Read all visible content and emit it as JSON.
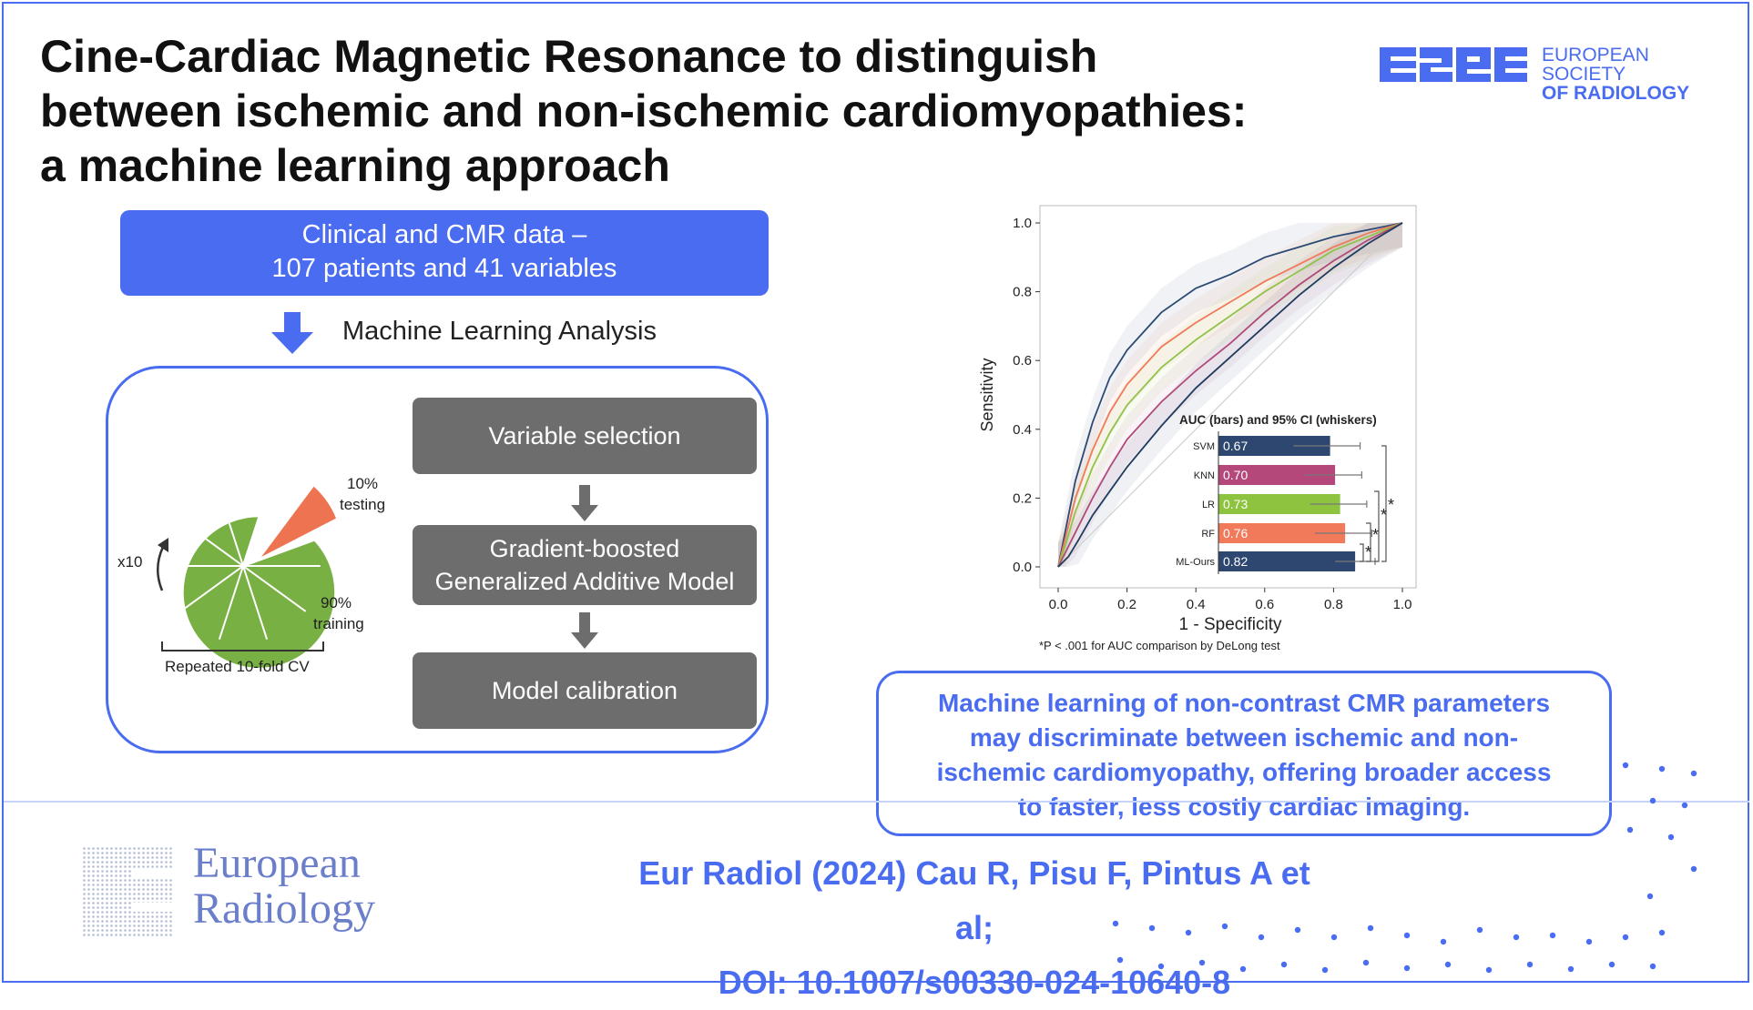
{
  "title_lines": [
    "Cine-Cardiac Magnetic Resonance to distinguish",
    "between ischemic and non-ischemic cardiomyopathies:",
    "a machine learning approach"
  ],
  "esr": {
    "line1": "EUROPEAN SOCIETY",
    "line2": "OF RADIOLOGY",
    "color": "#4a6cf0"
  },
  "data_box": {
    "line1": "Clinical and CMR data –",
    "line2": "107 patients and 41 variables"
  },
  "analysis_label": "Machine Learning Analysis",
  "cv": {
    "testing_pct": "10%",
    "testing": "testing",
    "training_pct": "90%",
    "training": "training",
    "repeats": "x10",
    "caption": "Repeated 10-fold CV"
  },
  "pipeline": {
    "step1": "Variable selection",
    "step2_line1": "Gradient-boosted",
    "step2_line2": "Generalized Additive Model",
    "step3": "Model calibration"
  },
  "chart_data": {
    "type": "line",
    "xlabel": "1 - Specificity",
    "ylabel": "Sensitivity",
    "xlim": [
      0,
      1
    ],
    "ylim": [
      0,
      1
    ],
    "xticks": [
      "0.0",
      "0.2",
      "0.4",
      "0.6",
      "0.8",
      "1.0"
    ],
    "yticks": [
      "0.0",
      "0.2",
      "0.4",
      "0.6",
      "0.8",
      "1.0"
    ],
    "footnote": "*P < .001 for AUC comparison by DeLong test",
    "series": [
      {
        "color": "#2c4a73",
        "points": [
          [
            0,
            0
          ],
          [
            0.02,
            0.1
          ],
          [
            0.05,
            0.25
          ],
          [
            0.1,
            0.42
          ],
          [
            0.15,
            0.55
          ],
          [
            0.2,
            0.63
          ],
          [
            0.3,
            0.74
          ],
          [
            0.4,
            0.81
          ],
          [
            0.5,
            0.85
          ],
          [
            0.6,
            0.9
          ],
          [
            0.7,
            0.93
          ],
          [
            0.8,
            0.96
          ],
          [
            0.9,
            0.98
          ],
          [
            1,
            1
          ]
        ]
      },
      {
        "color": "#f07a5a",
        "points": [
          [
            0,
            0
          ],
          [
            0.02,
            0.08
          ],
          [
            0.05,
            0.2
          ],
          [
            0.1,
            0.34
          ],
          [
            0.15,
            0.45
          ],
          [
            0.2,
            0.53
          ],
          [
            0.3,
            0.64
          ],
          [
            0.4,
            0.71
          ],
          [
            0.5,
            0.77
          ],
          [
            0.6,
            0.83
          ],
          [
            0.7,
            0.88
          ],
          [
            0.8,
            0.93
          ],
          [
            0.9,
            0.97
          ],
          [
            1,
            1
          ]
        ]
      },
      {
        "color": "#8fc34a",
        "points": [
          [
            0,
            0
          ],
          [
            0.02,
            0.06
          ],
          [
            0.05,
            0.16
          ],
          [
            0.1,
            0.29
          ],
          [
            0.15,
            0.39
          ],
          [
            0.2,
            0.47
          ],
          [
            0.3,
            0.58
          ],
          [
            0.4,
            0.66
          ],
          [
            0.5,
            0.73
          ],
          [
            0.6,
            0.8
          ],
          [
            0.7,
            0.86
          ],
          [
            0.8,
            0.92
          ],
          [
            0.9,
            0.96
          ],
          [
            1,
            1
          ]
        ]
      },
      {
        "color": "#b04a7a",
        "points": [
          [
            0,
            0
          ],
          [
            0.02,
            0.04
          ],
          [
            0.05,
            0.1
          ],
          [
            0.1,
            0.2
          ],
          [
            0.15,
            0.29
          ],
          [
            0.2,
            0.37
          ],
          [
            0.3,
            0.48
          ],
          [
            0.4,
            0.57
          ],
          [
            0.5,
            0.65
          ],
          [
            0.6,
            0.74
          ],
          [
            0.7,
            0.82
          ],
          [
            0.8,
            0.89
          ],
          [
            0.9,
            0.95
          ],
          [
            1,
            1
          ]
        ]
      },
      {
        "color": "#1f3b5e",
        "points": [
          [
            0,
            0
          ],
          [
            0.03,
            0.03
          ],
          [
            0.06,
            0.08
          ],
          [
            0.1,
            0.15
          ],
          [
            0.15,
            0.22
          ],
          [
            0.2,
            0.29
          ],
          [
            0.3,
            0.41
          ],
          [
            0.4,
            0.52
          ],
          [
            0.5,
            0.61
          ],
          [
            0.6,
            0.7
          ],
          [
            0.7,
            0.79
          ],
          [
            0.8,
            0.87
          ],
          [
            0.9,
            0.94
          ],
          [
            1,
            1
          ]
        ]
      }
    ],
    "inset": {
      "title": "AUC (bars) and 95% CI (whiskers)",
      "bars": [
        {
          "label": "SVM",
          "value": 0.67,
          "text": "0.67",
          "ci": [
            0.45,
            0.85
          ],
          "color": "#2d4770"
        },
        {
          "label": "KNN",
          "value": 0.7,
          "text": "0.70",
          "ci": [
            0.52,
            0.86
          ],
          "color": "#b5487a"
        },
        {
          "label": "LR",
          "value": 0.73,
          "text": "0.73",
          "ci": [
            0.55,
            0.89
          ],
          "color": "#8dc33f"
        },
        {
          "label": "RF",
          "value": 0.76,
          "text": "0.76",
          "ci": [
            0.58,
            0.92
          ],
          "color": "#f07a5a"
        },
        {
          "label": "ML-Ours",
          "value": 0.82,
          "text": "0.82",
          "ci": [
            0.7,
            0.94
          ],
          "color": "#2d4770"
        }
      ],
      "significance_marks": [
        "*",
        "*",
        "*",
        "*"
      ]
    }
  },
  "conclusion_lines": [
    "Machine learning of non-contrast CMR parameters",
    "may discriminate between ischemic and non-",
    "ischemic cardiomyopathy, offering broader access",
    "to faster, less costly cardiac imaging."
  ],
  "journal": {
    "line1": "European",
    "line2": "Radiology"
  },
  "citation": {
    "line1": "Eur Radiol (2024) Cau R, Pisu F, Pintus A et al;",
    "line2": "DOI: 10.1007/s00330-024-10640-8"
  }
}
